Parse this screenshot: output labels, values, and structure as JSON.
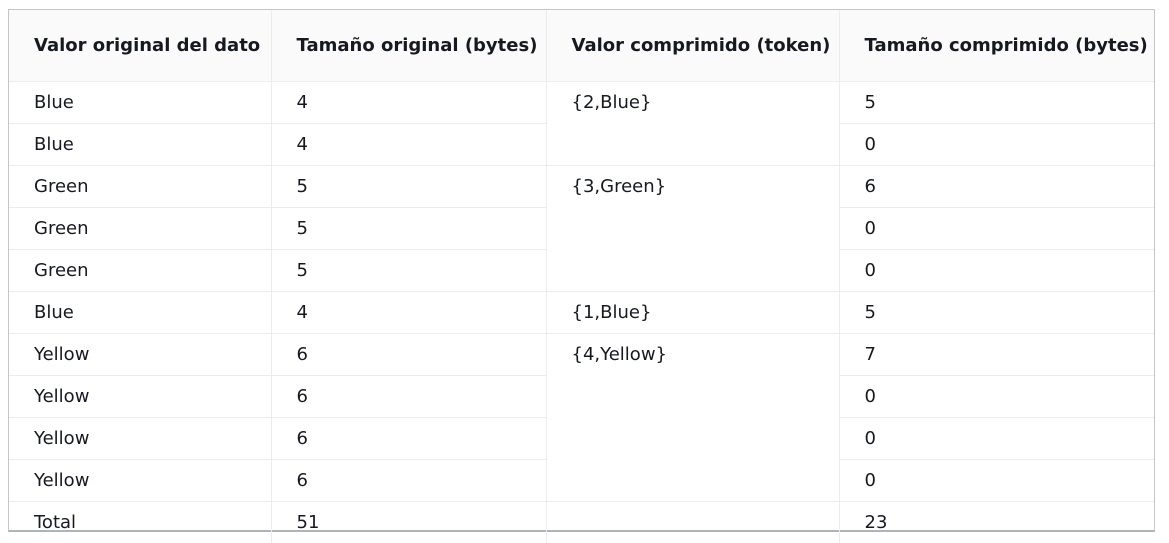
{
  "table": {
    "headers": [
      "Valor original del dato",
      "Tamaño original (bytes)",
      "Valor comprimido (token)",
      "Tamaño comprimido (bytes)"
    ],
    "rows": [
      [
        "Blue",
        "4",
        "{2,Blue}",
        "5"
      ],
      [
        "Blue",
        "4",
        "",
        "0"
      ],
      [
        "Green",
        "5",
        "{3,Green}",
        "6"
      ],
      [
        "Green",
        "5",
        "",
        "0"
      ],
      [
        "Green",
        "5",
        "",
        "0"
      ],
      [
        "Blue",
        "4",
        "{1,Blue}",
        "5"
      ],
      [
        "Yellow",
        "6",
        "{4,Yellow}",
        "7"
      ],
      [
        "Yellow",
        "6",
        "",
        "0"
      ],
      [
        "Yellow",
        "6",
        "",
        "0"
      ],
      [
        "Yellow",
        "6",
        "",
        "0"
      ],
      [
        "Total",
        "51",
        "",
        "23"
      ]
    ]
  }
}
